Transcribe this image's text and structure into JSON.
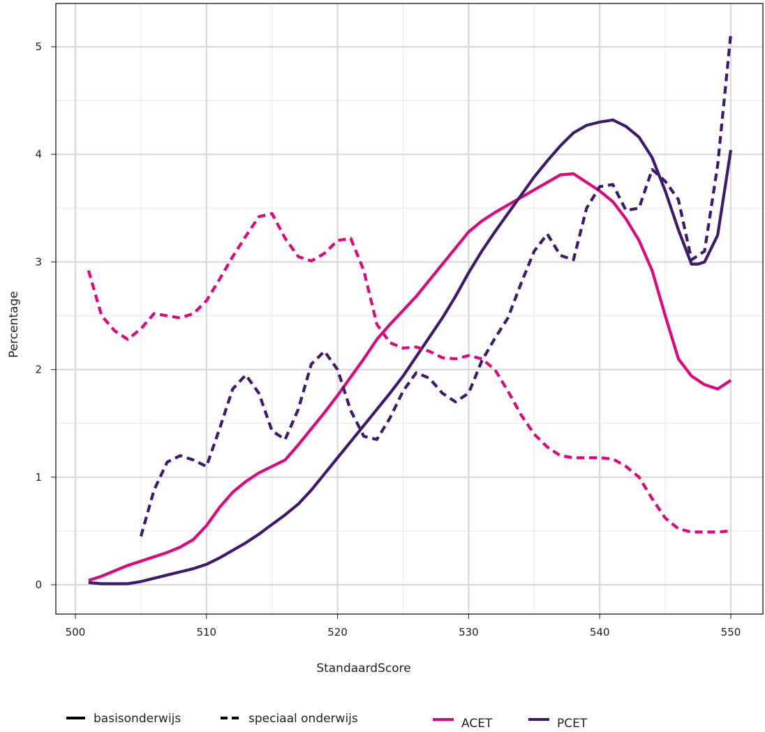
{
  "chart_data": {
    "type": "line",
    "xlabel": "StandaardScore",
    "ylabel": "Percentage",
    "xlim": [
      500,
      550
    ],
    "ylim": [
      -0.25,
      5.4
    ],
    "xticks": [
      "500",
      "510",
      "520",
      "530",
      "540",
      "550"
    ],
    "yticks": [
      "0",
      "1",
      "2",
      "3",
      "4",
      "5"
    ],
    "grid": true,
    "legend_placement": "bottom",
    "colors": {
      "ACET": "#e0077d",
      "PCET": "#3d1a6b"
    },
    "legends": {
      "linetype": [
        {
          "label": "basisonderwijs",
          "style": "solid"
        },
        {
          "label": "speciaal onderwijs",
          "style": "dashed"
        }
      ],
      "color": [
        {
          "label": "ACET",
          "color": "#e0077d"
        },
        {
          "label": "PCET",
          "color": "#3d1a6b"
        }
      ]
    },
    "series": [
      {
        "name": "ACET",
        "style": "solid",
        "x": [
          501,
          502,
          503,
          504,
          505,
          506,
          507,
          508,
          509,
          510,
          511,
          512,
          513,
          514,
          515,
          516,
          517,
          518,
          519,
          520,
          521,
          522,
          523,
          524,
          525,
          526,
          527,
          528,
          529,
          530,
          531,
          532,
          533,
          534,
          535,
          536,
          537,
          538,
          539,
          540,
          541,
          542,
          543,
          544,
          545,
          546,
          547,
          548,
          549,
          550
        ],
        "y": [
          0.04,
          0.08,
          0.13,
          0.18,
          0.22,
          0.26,
          0.3,
          0.35,
          0.42,
          0.55,
          0.72,
          0.86,
          0.96,
          1.04,
          1.1,
          1.16,
          1.3,
          1.45,
          1.6,
          1.76,
          1.93,
          2.1,
          2.28,
          2.42,
          2.55,
          2.68,
          2.83,
          2.98,
          3.13,
          3.28,
          3.38,
          3.46,
          3.53,
          3.6,
          3.67,
          3.74,
          3.81,
          3.82,
          3.74,
          3.66,
          3.56,
          3.4,
          3.2,
          2.92,
          2.5,
          2.1,
          1.94,
          1.86,
          1.82,
          1.9
        ]
      },
      {
        "name": "PCET",
        "style": "solid",
        "x": [
          501,
          502,
          503,
          504,
          505,
          506,
          507,
          508,
          509,
          510,
          511,
          512,
          513,
          514,
          515,
          516,
          517,
          518,
          519,
          520,
          521,
          522,
          523,
          524,
          525,
          526,
          527,
          528,
          529,
          530,
          531,
          532,
          533,
          534,
          535,
          536,
          537,
          538,
          539,
          540,
          541,
          542,
          543,
          544,
          545,
          546,
          547,
          547.5,
          548,
          549,
          550
        ],
        "y": [
          0.02,
          0.01,
          0.01,
          0.01,
          0.03,
          0.06,
          0.09,
          0.12,
          0.15,
          0.19,
          0.25,
          0.32,
          0.39,
          0.47,
          0.56,
          0.65,
          0.75,
          0.88,
          1.03,
          1.18,
          1.33,
          1.48,
          1.63,
          1.78,
          1.94,
          2.12,
          2.3,
          2.48,
          2.68,
          2.9,
          3.1,
          3.28,
          3.45,
          3.62,
          3.79,
          3.94,
          4.08,
          4.2,
          4.27,
          4.3,
          4.32,
          4.26,
          4.16,
          3.97,
          3.66,
          3.3,
          2.98,
          2.98,
          3.0,
          3.25,
          4.04
        ]
      },
      {
        "name": "ACET",
        "style": "dashed",
        "x": [
          501,
          502,
          503,
          504,
          505,
          506,
          507,
          508,
          509,
          510,
          511,
          512,
          513,
          514,
          515,
          516,
          517,
          518,
          519,
          520,
          521,
          522,
          523,
          524,
          525,
          526,
          527,
          528,
          529,
          530,
          531,
          532,
          533,
          534,
          535,
          536,
          537,
          538,
          539,
          540,
          541,
          542,
          543,
          544,
          545,
          546,
          547,
          548,
          549,
          550
        ],
        "y": [
          2.92,
          2.5,
          2.36,
          2.28,
          2.38,
          2.52,
          2.5,
          2.48,
          2.52,
          2.64,
          2.84,
          3.05,
          3.24,
          3.42,
          3.45,
          3.22,
          3.05,
          3.01,
          3.08,
          3.2,
          3.22,
          2.92,
          2.42,
          2.25,
          2.2,
          2.21,
          2.17,
          2.11,
          2.1,
          2.13,
          2.1,
          2.0,
          1.8,
          1.58,
          1.4,
          1.28,
          1.2,
          1.18,
          1.18,
          1.18,
          1.17,
          1.1,
          1.0,
          0.8,
          0.62,
          0.52,
          0.49,
          0.49,
          0.49,
          0.5
        ]
      },
      {
        "name": "PCET",
        "style": "dashed",
        "x": [
          505,
          506,
          507,
          508,
          509,
          510,
          511,
          512,
          513,
          514,
          515,
          516,
          517,
          518,
          519,
          520,
          521,
          522,
          523,
          524,
          525,
          526,
          527,
          528,
          529,
          530,
          531,
          532,
          533,
          534,
          535,
          536,
          537,
          538,
          539,
          540,
          541,
          542,
          543,
          544,
          545,
          546,
          547,
          548,
          549,
          550
        ],
        "y": [
          0.45,
          0.88,
          1.14,
          1.2,
          1.16,
          1.1,
          1.45,
          1.82,
          1.95,
          1.78,
          1.43,
          1.35,
          1.63,
          2.05,
          2.17,
          2.0,
          1.62,
          1.38,
          1.35,
          1.55,
          1.8,
          1.97,
          1.92,
          1.78,
          1.7,
          1.78,
          2.08,
          2.29,
          2.48,
          2.8,
          3.1,
          3.26,
          3.06,
          3.02,
          3.5,
          3.7,
          3.72,
          3.48,
          3.5,
          3.86,
          3.75,
          3.58,
          3.02,
          3.1,
          3.9,
          5.12
        ]
      }
    ]
  }
}
